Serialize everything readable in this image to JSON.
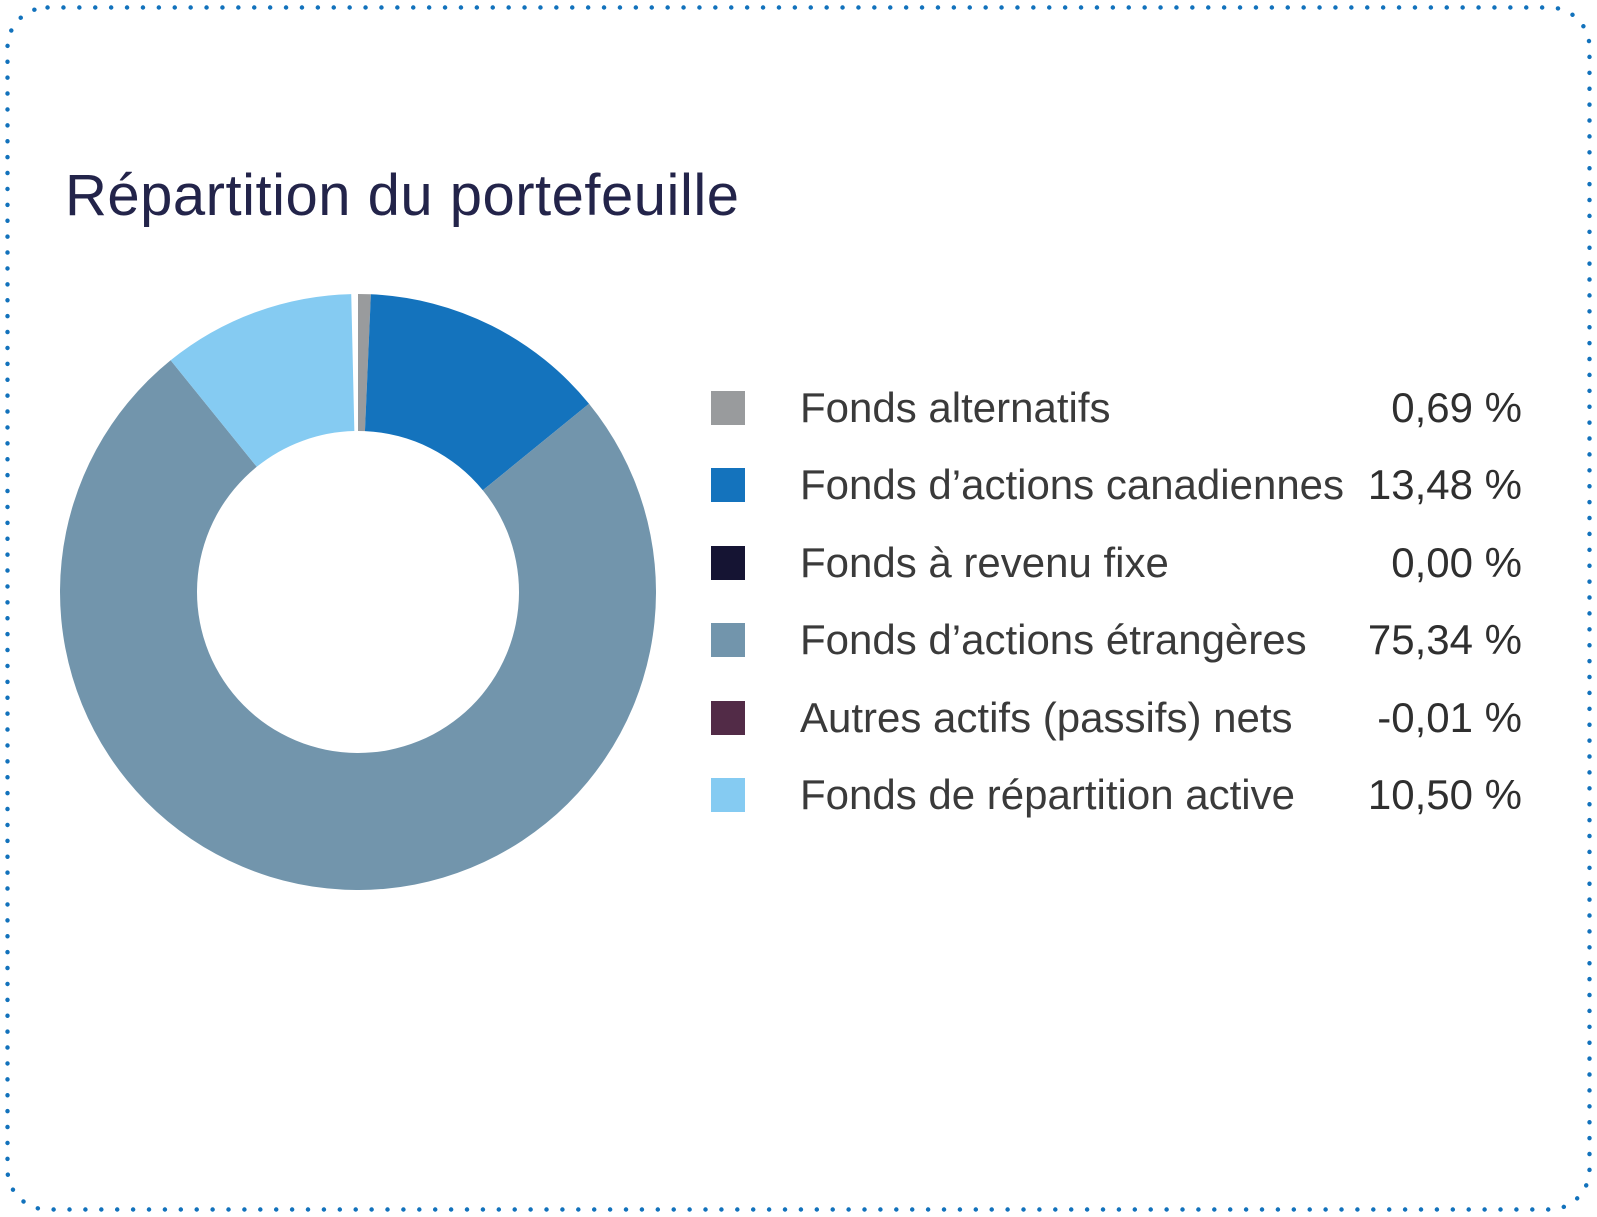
{
  "page": {
    "border_color": "#1272bc",
    "background_color": "#ffffff"
  },
  "header": {
    "title": "Répartition du portefeuille",
    "title_color": "#23244a"
  },
  "chart_data": {
    "type": "pie",
    "subtype": "donut",
    "title": "Répartition du portefeuille",
    "legend_position": "right",
    "direction": "clockwise",
    "start_angle_deg": 0,
    "inner_radius_ratio": 0.54,
    "categories": [
      "Fonds alternatifs",
      "Fonds d’actions canadiennes",
      "Fonds à revenu fixe",
      "Fonds d’actions étrangères",
      "Autres actifs (passifs) nets",
      "Fonds de répartition active"
    ],
    "values": [
      0.69,
      13.48,
      0.0,
      75.34,
      -0.01,
      10.5
    ],
    "value_labels": [
      "0,69 %",
      "13,48 %",
      "0,00 %",
      "75,34 %",
      "-0,01 %",
      "10,50 %"
    ],
    "colors": [
      "#999b9d",
      "#1473bd",
      "#151433",
      "#7295ac",
      "#522b47",
      "#85cbf2"
    ]
  }
}
